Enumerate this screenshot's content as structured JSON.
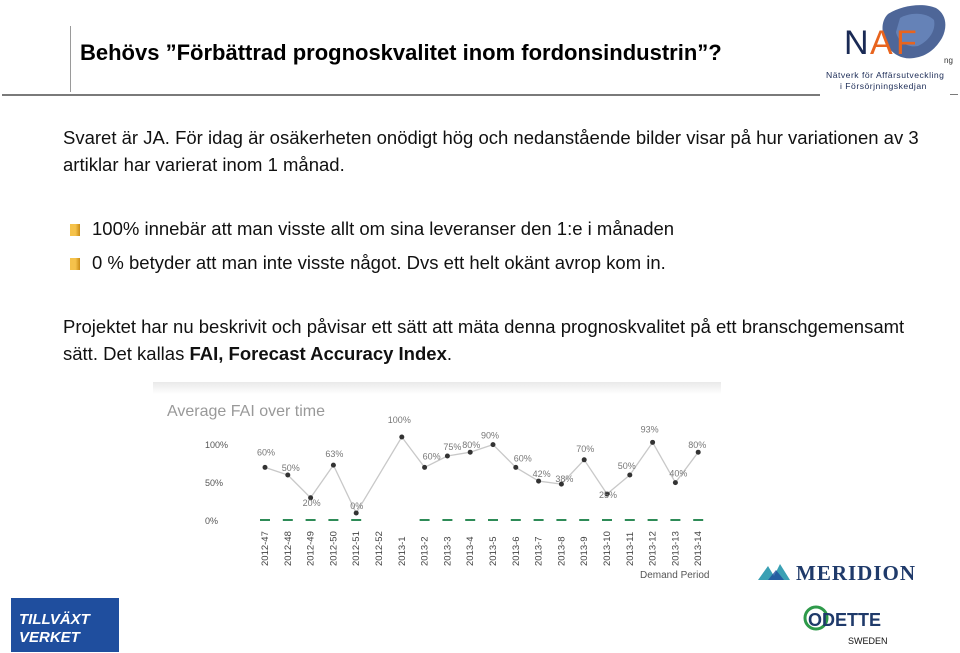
{
  "title": "Behövs ”Förbättrad prognoskvalitet inom fordonsindustrin”?",
  "logo_naf": {
    "wordmark": "NAF",
    "line1": "Nätverk för Affärsutveckling",
    "line2": "i Försörjningskedjan",
    "side_text": "ng"
  },
  "intro_text": "Svaret är JA. För idag är osäkerheten onödigt hög och nedanstående bilder visar på hur variationen av 3 artiklar har varierat inom 1 månad.",
  "bullets": [
    "100%  innebär att man visste allt om sina leveranser den 1:e i månaden",
    "0 % betyder att man inte visste något. Dvs ett helt okänt avrop kom in."
  ],
  "project": {
    "text_before": "Projektet har nu beskrivit och påvisar ett sätt att mäta denna prognoskvalitet på ett branschgemensamt sätt. Det kallas ",
    "bold": "FAI, Forecast Accuracy Index",
    "text_after": "."
  },
  "chart_data": {
    "type": "line",
    "title": "Average FAI over time",
    "xlabel": "Demand Period",
    "ylabel": "",
    "yticks": [
      "100%",
      "50%",
      "0%"
    ],
    "ylim": [
      0,
      100
    ],
    "grid": false,
    "categories": [
      "2012-47",
      "2012-48",
      "2012-49",
      "2012-50",
      "2012-51",
      "2012-52",
      "2013-1",
      "2013-2",
      "2013-3",
      "2013-4",
      "2013-5",
      "2013-6",
      "2013-7",
      "2013-8",
      "2013-9",
      "2013-10",
      "2013-11",
      "2013-12",
      "2013-13",
      "2013-14"
    ],
    "series": [
      {
        "values": [
          60,
          50,
          20,
          63,
          0,
          null,
          100,
          60,
          75,
          80,
          90,
          60,
          42,
          38,
          70,
          25,
          50,
          93,
          40,
          80
        ],
        "labels": [
          "60%",
          "50%",
          "20%",
          "63%",
          "0%",
          null,
          "100%",
          "60%",
          "75%",
          "80%",
          "90%",
          "60%",
          "42%",
          "38%",
          "70%",
          "25%",
          "50%",
          "93%",
          "40%",
          "80%"
        ],
        "color": "#444444"
      }
    ],
    "secondary_values": [
      0,
      0,
      0,
      0,
      0,
      null,
      null,
      0,
      0,
      0,
      0,
      0,
      0,
      0,
      0,
      0,
      0,
      0,
      0,
      0
    ],
    "secondary_color": "#2e8b57"
  },
  "logos": {
    "meridion": "MERIDION",
    "odette_name": "ODETTE",
    "odette_country": "SWEDEN",
    "tillvaxt_line1": "TILLVÄXT",
    "tillvaxt_line2": "VERKET"
  },
  "colors": {
    "bullet": "#f5c24b",
    "naf_blue": "#1a2a55",
    "naf_orange": "#e8641e",
    "tillvaxt_blue": "#1f4e9e",
    "meridion_teal": "#3aa0b4"
  }
}
